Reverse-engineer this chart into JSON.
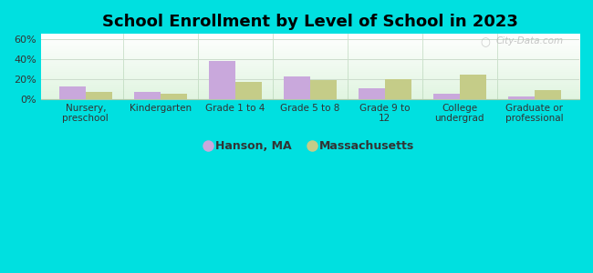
{
  "title": "School Enrollment by Level of School in 2023",
  "categories": [
    "Nursery,\npreschool",
    "Kindergarten",
    "Grade 1 to 4",
    "Grade 5 to 8",
    "Grade 9 to\n12",
    "College\nundergrad",
    "Graduate or\nprofessional"
  ],
  "hanson_values": [
    13,
    7,
    38,
    23,
    11,
    5,
    3
  ],
  "ma_values": [
    7,
    5,
    17,
    19,
    20,
    24,
    9
  ],
  "hanson_color": "#c9a8dc",
  "ma_color": "#c5cc88",
  "hanson_label": "Hanson, MA",
  "ma_label": "Massachusetts",
  "ylim": [
    0,
    65
  ],
  "yticks": [
    0,
    20,
    40,
    60
  ],
  "ytick_labels": [
    "0%",
    "20%",
    "40%",
    "60%"
  ],
  "figure_bg": "#00e0e0",
  "title_fontsize": 13,
  "bar_width": 0.35,
  "watermark": "City-Data.com",
  "grid_color": "#ccddcc",
  "separator_color": "#aaccaa"
}
